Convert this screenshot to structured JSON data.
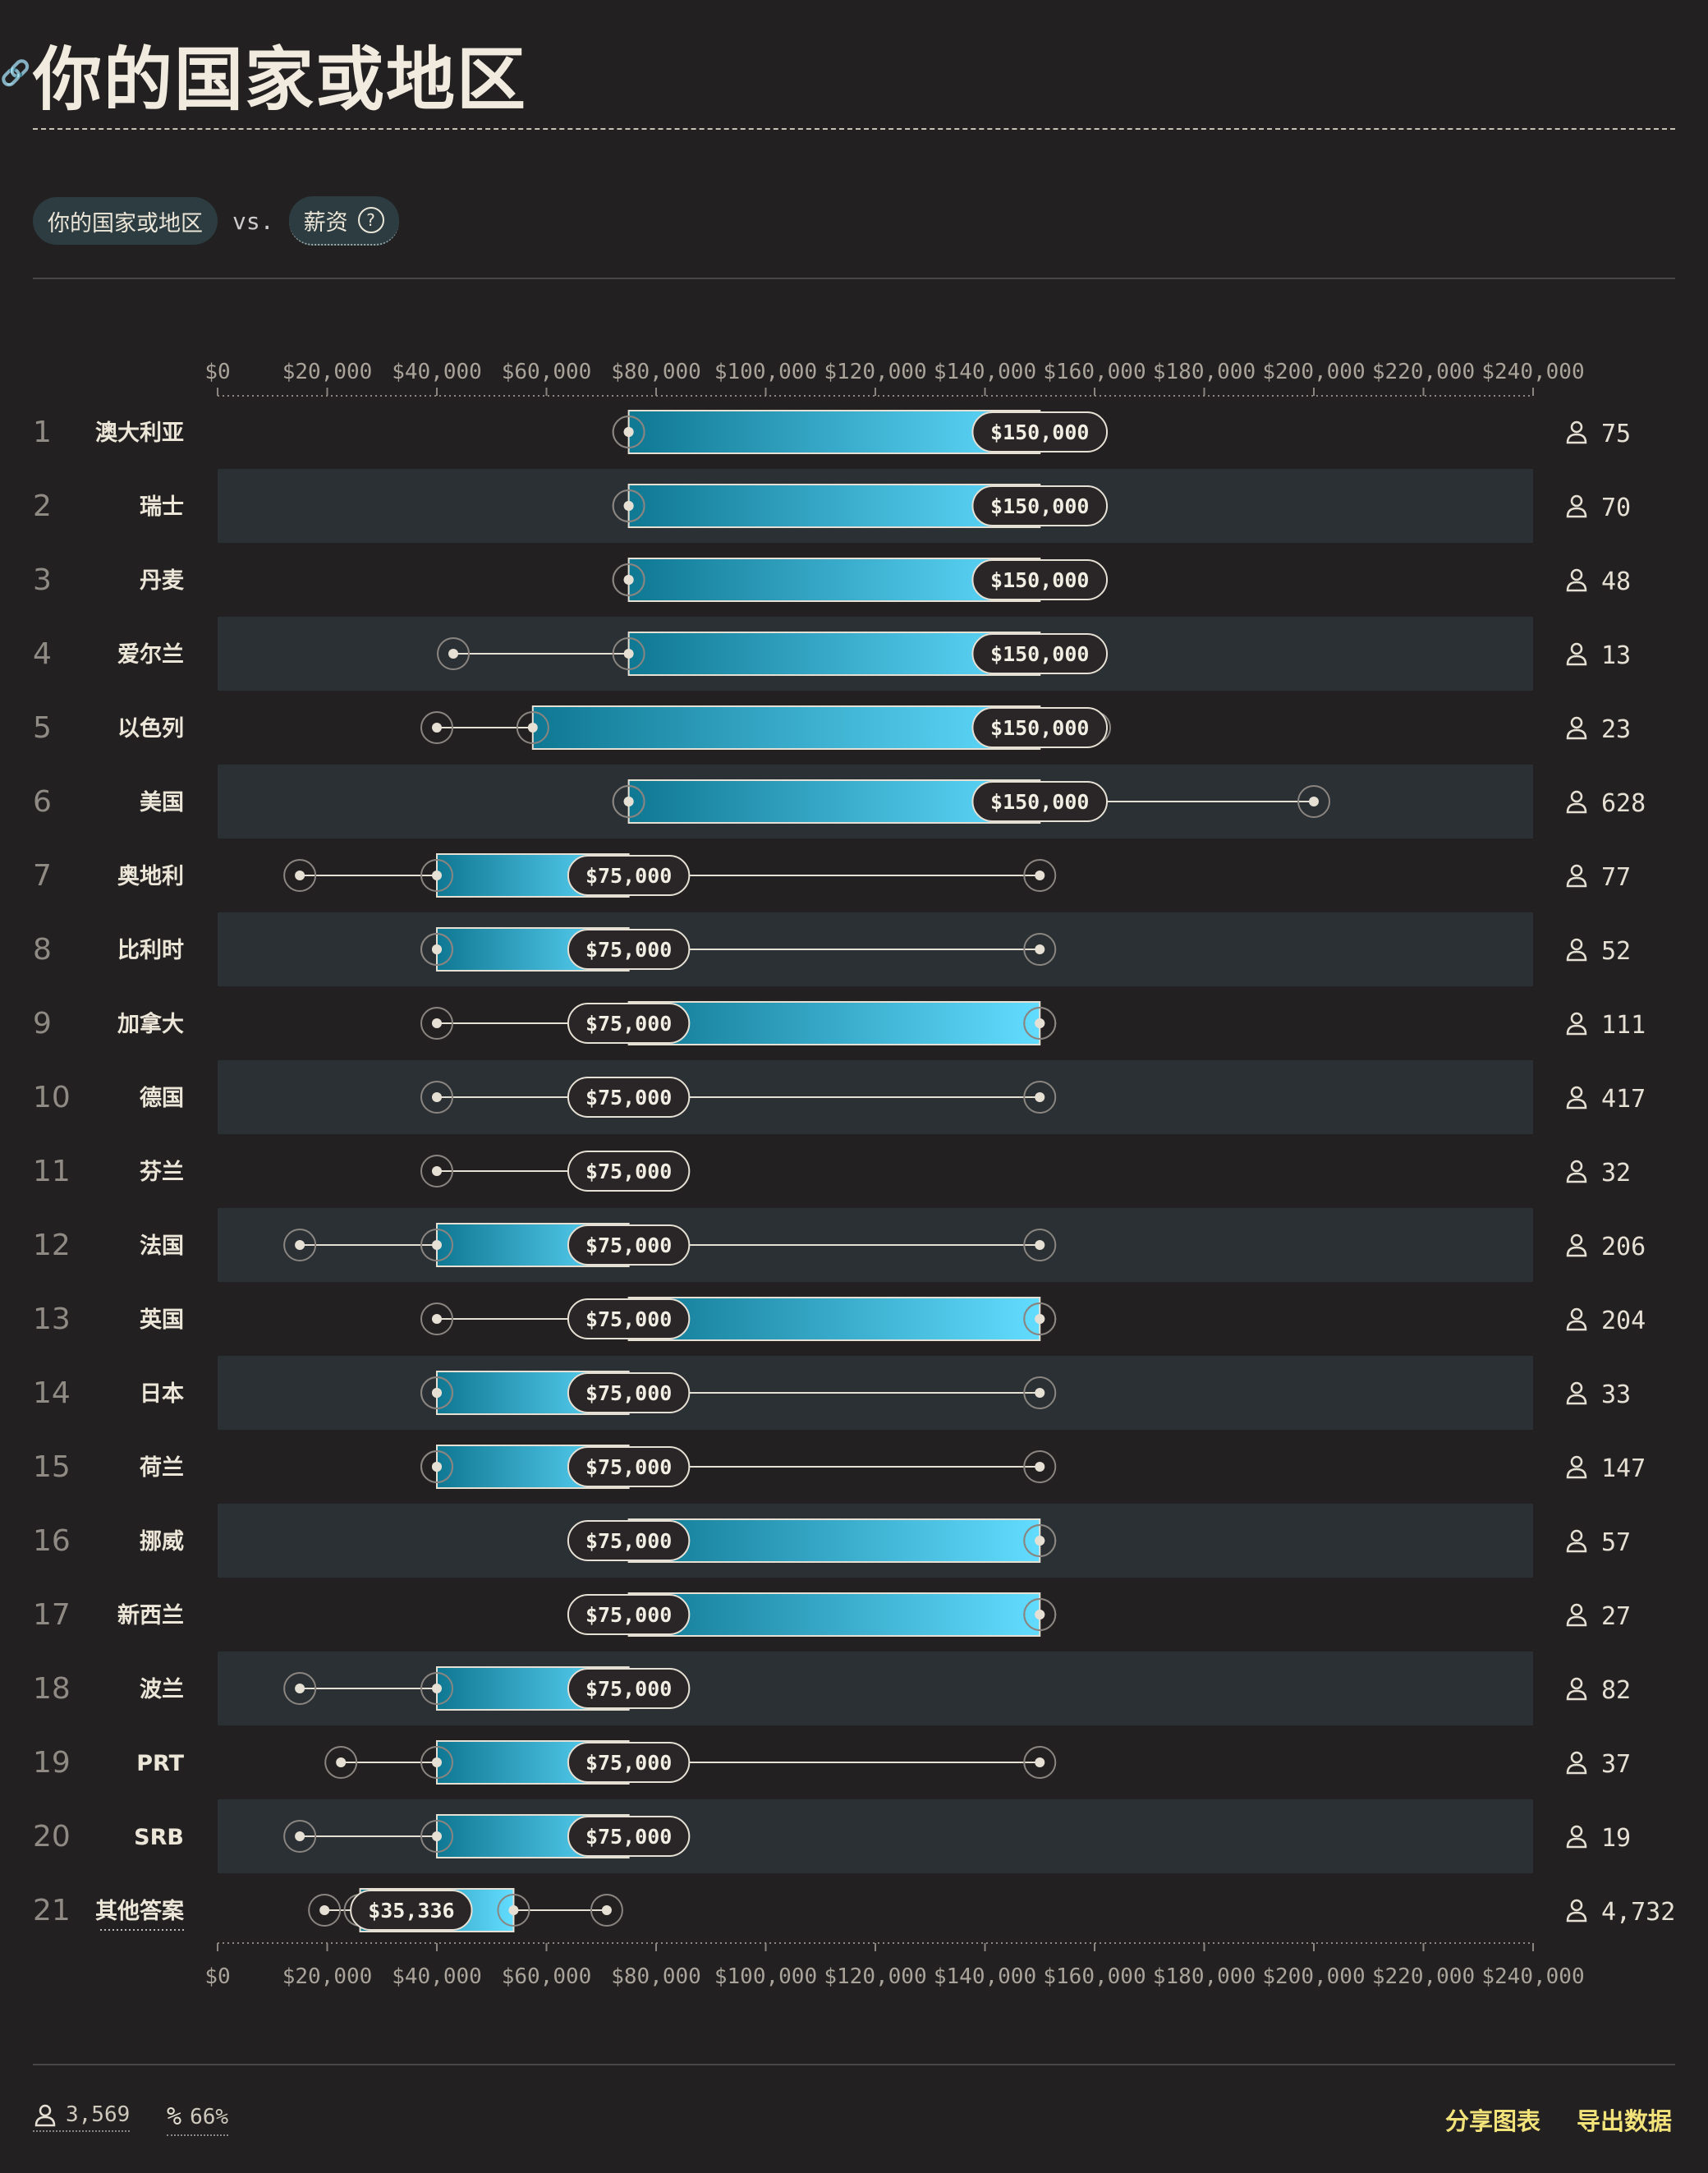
{
  "page": {
    "title": "你的国家或地区",
    "filter_dimension": "你的国家或地区",
    "vs_label": "vs.",
    "filter_metric": "薪资",
    "help_icon": "question-circle-icon",
    "link_icon": "link-icon"
  },
  "footer": {
    "respondents": "3,569",
    "percent": "66%",
    "share_label": "分享图表",
    "export_label": "导出数据",
    "person_icon": "person-icon",
    "percent_icon": "percent-icon"
  },
  "colors": {
    "background": "#232021",
    "row_alt": "#2a3033",
    "bar_dark": "#0f7893",
    "bar_light": "#62dcff",
    "accent_yellow": "#f2e27a"
  },
  "chart_data": {
    "type": "bar",
    "subtype": "range-bar",
    "xlim": [
      0,
      240000
    ],
    "x_ticks": [
      "$0",
      "$20,000",
      "$40,000",
      "$60,000",
      "$80,000",
      "$100,000",
      "$120,000",
      "$140,000",
      "$160,000",
      "$180,000",
      "$200,000",
      "$220,000",
      "$240,000"
    ],
    "x_tick_values": [
      0,
      20000,
      40000,
      60000,
      80000,
      100000,
      120000,
      140000,
      160000,
      180000,
      200000,
      220000,
      240000
    ],
    "rows": [
      {
        "rank": "1",
        "name": "澳大利亚",
        "p10": 75000,
        "p25": 75000,
        "median": 150000,
        "median_label": "$150,000",
        "p75": 150000,
        "p90": 150000,
        "count": "75"
      },
      {
        "rank": "2",
        "name": "瑞士",
        "p10": 75000,
        "p25": 75000,
        "median": 150000,
        "median_label": "$150,000",
        "p75": 150000,
        "p90": 150000,
        "count": "70"
      },
      {
        "rank": "3",
        "name": "丹麦",
        "p10": 75000,
        "p25": 75000,
        "median": 150000,
        "median_label": "$150,000",
        "p75": 150000,
        "p90": 150000,
        "count": "48"
      },
      {
        "rank": "4",
        "name": "爱尔兰",
        "p10": 43000,
        "p25": 75000,
        "median": 150000,
        "median_label": "$150,000",
        "p75": 150000,
        "p90": 150000,
        "count": "13"
      },
      {
        "rank": "5",
        "name": "以色列",
        "p10": 40000,
        "p25": 57500,
        "median": 150000,
        "median_label": "$150,000",
        "p75": 150000,
        "p90": 160000,
        "count": "23"
      },
      {
        "rank": "6",
        "name": "美国",
        "p10": 75000,
        "p25": 75000,
        "median": 150000,
        "median_label": "$150,000",
        "p75": 150000,
        "p90": 200000,
        "count": "628"
      },
      {
        "rank": "7",
        "name": "奥地利",
        "p10": 15000,
        "p25": 40000,
        "median": 75000,
        "median_label": "$75,000",
        "p75": 75000,
        "p90": 150000,
        "count": "77"
      },
      {
        "rank": "8",
        "name": "比利时",
        "p10": 40000,
        "p25": 40000,
        "median": 75000,
        "median_label": "$75,000",
        "p75": 75000,
        "p90": 150000,
        "count": "52"
      },
      {
        "rank": "9",
        "name": "加拿大",
        "p10": 40000,
        "p25": 75000,
        "median": 75000,
        "median_label": "$75,000",
        "p75": 150000,
        "p90": 150000,
        "count": "111"
      },
      {
        "rank": "10",
        "name": "德国",
        "p10": 40000,
        "p25": 75000,
        "median": 75000,
        "median_label": "$75,000",
        "p75": 75000,
        "p90": 150000,
        "count": "417"
      },
      {
        "rank": "11",
        "name": "芬兰",
        "p10": 40000,
        "p25": 75000,
        "median": 75000,
        "median_label": "$75,000",
        "p75": 75000,
        "p90": 75000,
        "count": "32"
      },
      {
        "rank": "12",
        "name": "法国",
        "p10": 15000,
        "p25": 40000,
        "median": 75000,
        "median_label": "$75,000",
        "p75": 75000,
        "p90": 150000,
        "count": "206"
      },
      {
        "rank": "13",
        "name": "英国",
        "p10": 40000,
        "p25": 75000,
        "median": 75000,
        "median_label": "$75,000",
        "p75": 150000,
        "p90": 150000,
        "count": "204"
      },
      {
        "rank": "14",
        "name": "日本",
        "p10": 40000,
        "p25": 40000,
        "median": 75000,
        "median_label": "$75,000",
        "p75": 75000,
        "p90": 150000,
        "count": "33"
      },
      {
        "rank": "15",
        "name": "荷兰",
        "p10": 40000,
        "p25": 40000,
        "median": 75000,
        "median_label": "$75,000",
        "p75": 75000,
        "p90": 150000,
        "count": "147"
      },
      {
        "rank": "16",
        "name": "挪威",
        "p10": 75000,
        "p25": 75000,
        "median": 75000,
        "median_label": "$75,000",
        "p75": 150000,
        "p90": 150000,
        "count": "57"
      },
      {
        "rank": "17",
        "name": "新西兰",
        "p10": 75000,
        "p25": 75000,
        "median": 75000,
        "median_label": "$75,000",
        "p75": 150000,
        "p90": 150000,
        "count": "27"
      },
      {
        "rank": "18",
        "name": "波兰",
        "p10": 15000,
        "p25": 40000,
        "median": 75000,
        "median_label": "$75,000",
        "p75": 75000,
        "p90": 75000,
        "count": "82"
      },
      {
        "rank": "19",
        "name": "PRT",
        "p10": 22500,
        "p25": 40000,
        "median": 75000,
        "median_label": "$75,000",
        "p75": 75000,
        "p90": 150000,
        "count": "37"
      },
      {
        "rank": "20",
        "name": "SRB",
        "p10": 15000,
        "p25": 40000,
        "median": 75000,
        "median_label": "$75,000",
        "p75": 75000,
        "p90": 75000,
        "count": "19"
      },
      {
        "rank": "21",
        "name": "其他答案",
        "p10": 19500,
        "p25": 26000,
        "median": 35336,
        "median_label": "$35,336",
        "p75": 54000,
        "p90": 71000,
        "count": "4,732"
      }
    ]
  }
}
